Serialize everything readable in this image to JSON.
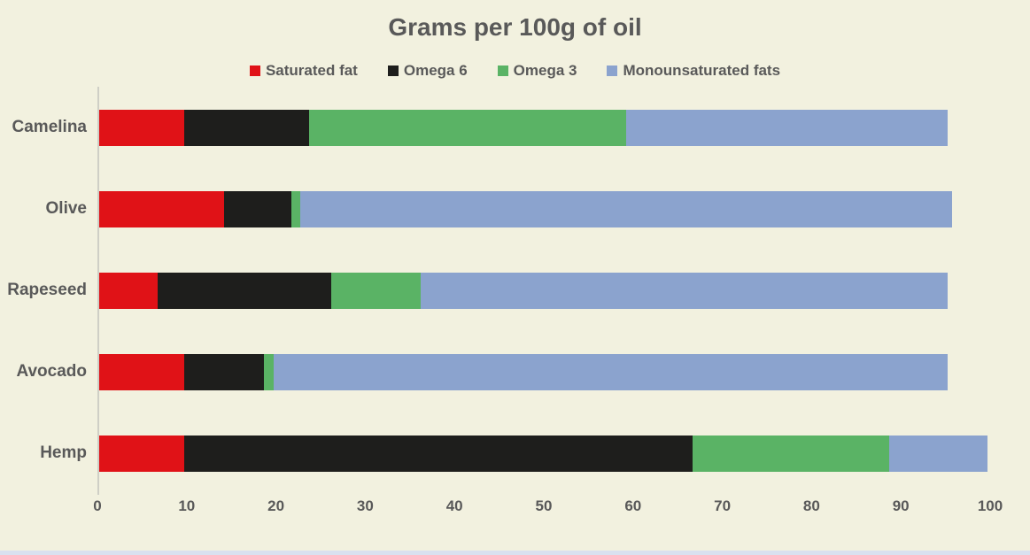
{
  "chart_data": {
    "type": "bar",
    "orientation": "horizontal",
    "stacked": true,
    "title": "Grams per 100g of oil",
    "categories": [
      "Camelina",
      "Olive",
      "Rapeseed",
      "Avocado",
      "Hemp"
    ],
    "series": [
      {
        "name": "Saturated fat",
        "color": "#e01217",
        "values": [
          9.5,
          14,
          6.5,
          9.5,
          9.5
        ]
      },
      {
        "name": "Omega 6",
        "color": "#1e1e1c",
        "values": [
          14,
          7.5,
          19.5,
          9,
          57
        ]
      },
      {
        "name": "Omega 3",
        "color": "#5ab365",
        "values": [
          35.5,
          1,
          10,
          1,
          22
        ]
      },
      {
        "name": "Monounsaturated fats",
        "color": "#8ba3ce",
        "values": [
          36,
          73,
          59,
          75.5,
          11
        ]
      }
    ],
    "x_axis": {
      "min": 0,
      "max": 100,
      "tick_interval": 10,
      "ticks": [
        0,
        10,
        20,
        30,
        40,
        50,
        60,
        70,
        80,
        90,
        100
      ]
    },
    "legend_position": "top",
    "grid": false,
    "xlabel": "",
    "ylabel": ""
  },
  "colors": {
    "background": "#f2f1df",
    "text": "#595959",
    "axis_line": "#cfcfc6",
    "bottom_strip": "#d9e1ef"
  }
}
